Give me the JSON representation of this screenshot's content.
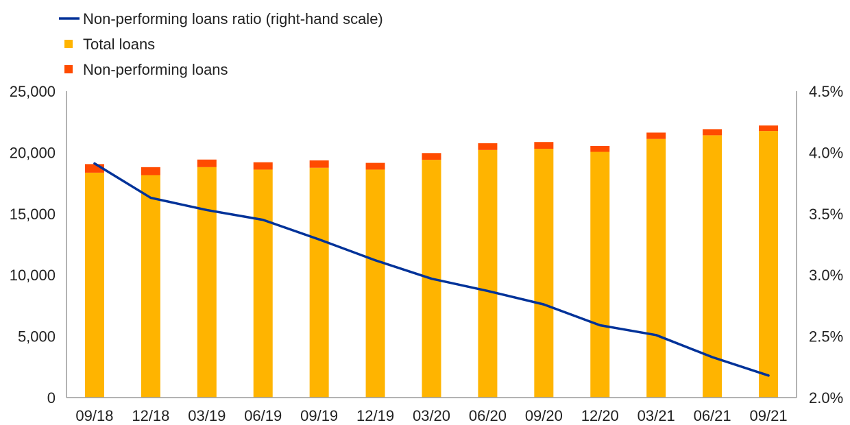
{
  "chart_data": {
    "type": "bar",
    "categories": [
      "09/18",
      "12/18",
      "03/19",
      "06/19",
      "09/19",
      "12/19",
      "03/20",
      "06/20",
      "09/20",
      "12/20",
      "03/21",
      "06/21",
      "09/21"
    ],
    "series": [
      {
        "name": "Total loans",
        "kind": "bar-stacked",
        "axis": "left",
        "color": "#FFB400",
        "values": [
          18350,
          18150,
          18800,
          18600,
          18750,
          18600,
          19400,
          20200,
          20300,
          20050,
          21100,
          21400,
          21750
        ]
      },
      {
        "name": "Non-performing loans",
        "kind": "bar-stacked",
        "axis": "left",
        "color": "#FF4B00",
        "values": [
          700,
          650,
          620,
          600,
          600,
          550,
          550,
          550,
          550,
          480,
          520,
          500,
          450
        ]
      },
      {
        "name": "Non-performing loans ratio (right-hand scale)",
        "kind": "line",
        "axis": "right",
        "color": "#003299",
        "values": [
          3.91,
          3.63,
          3.53,
          3.45,
          3.29,
          3.12,
          2.97,
          2.87,
          2.76,
          2.59,
          2.51,
          2.33,
          2.18
        ]
      }
    ],
    "y_left": {
      "min": 0,
      "max": 25000,
      "ticks": [
        "0",
        "5,000",
        "10,000",
        "15,000",
        "20,000",
        "25,000"
      ]
    },
    "y_right": {
      "min": 2.0,
      "max": 4.5,
      "ticks": [
        "2.0%",
        "2.5%",
        "3.0%",
        "3.5%",
        "4.0%",
        "4.5%"
      ]
    },
    "legend": {
      "placement": "top-left",
      "items": [
        {
          "label": "Non-performing loans ratio (right-hand scale)",
          "symbol": "line",
          "color": "#003299"
        },
        {
          "label": "Total loans",
          "symbol": "square",
          "color": "#FFB400"
        },
        {
          "label": "Non-performing loans",
          "symbol": "square",
          "color": "#FF4B00"
        }
      ]
    },
    "grid": false
  }
}
